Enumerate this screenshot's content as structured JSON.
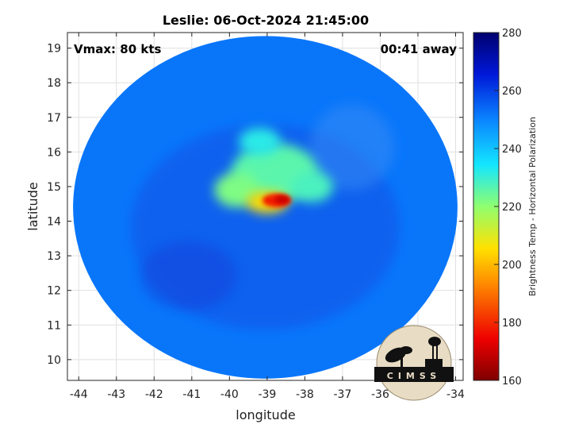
{
  "chart_data": {
    "type": "heatmap",
    "title": "Leslie: 06-Oct-2024 21:45:00",
    "xlabel": "longitude",
    "ylabel": "latitude",
    "xlim": [
      -44.3,
      -33.8
    ],
    "ylim": [
      9.4,
      19.45
    ],
    "xticks": [
      -44,
      -43,
      -42,
      -41,
      -40,
      -39,
      -38,
      -37,
      -36,
      -35,
      -34
    ],
    "yticks": [
      10,
      11,
      12,
      13,
      14,
      15,
      16,
      17,
      18,
      19
    ],
    "grid": true,
    "annotations": {
      "top_left": "Vmax: 80 kts",
      "top_right": "00:41 away"
    },
    "colorbar": {
      "label": "Brightness Temp - Horizontal Polarization",
      "range": [
        160,
        280
      ],
      "ticks": [
        160,
        180,
        200,
        220,
        240,
        260,
        280
      ]
    },
    "swath": {
      "center_lon": -39.05,
      "center_lat": 14.4,
      "radius_lon": 5.1,
      "radius_lat": 4.95,
      "background_value": 252
    },
    "features": [
      {
        "name": "rainband-warm",
        "lon": -38.8,
        "lat": 15.4,
        "radius_lon": 1.15,
        "radius_lat": 0.85,
        "value": 226
      },
      {
        "name": "rainband-west",
        "lon": -39.8,
        "lat": 14.9,
        "radius_lon": 0.6,
        "radius_lat": 0.5,
        "value": 222
      },
      {
        "name": "rainband-east",
        "lon": -37.8,
        "lat": 15.0,
        "radius_lon": 0.55,
        "radius_lat": 0.45,
        "value": 228
      },
      {
        "name": "rainband-north",
        "lon": -39.2,
        "lat": 16.3,
        "radius_lon": 0.55,
        "radius_lat": 0.4,
        "value": 232
      },
      {
        "name": "ring-inner",
        "lon": -39.0,
        "lat": 14.55,
        "radius_lon": 0.55,
        "radius_lat": 0.32,
        "value": 205
      },
      {
        "name": "eyewall-core",
        "lon": -38.75,
        "lat": 14.6,
        "radius_lon": 0.38,
        "radius_lat": 0.2,
        "value": 178
      },
      {
        "name": "eyewall-hot",
        "lon": -38.6,
        "lat": 14.62,
        "radius_lon": 0.2,
        "radius_lat": 0.12,
        "value": 170
      }
    ]
  },
  "logo": {
    "text": "CIMSS"
  }
}
